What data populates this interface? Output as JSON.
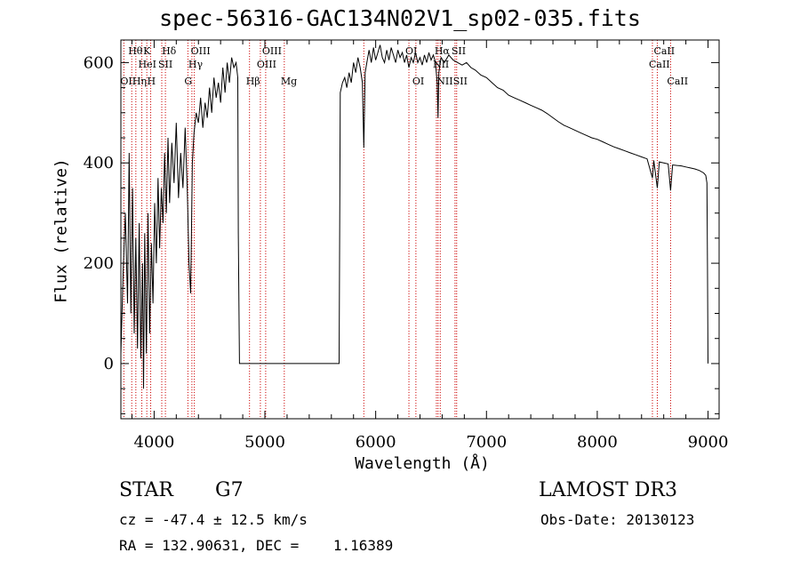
{
  "chart_data": {
    "type": "line",
    "title": "spec-56316-GAC134N02V1_sp02-035.fits",
    "xlabel": "Wavelength (Å)",
    "ylabel": "Flux (relative)",
    "xlim": [
      3700,
      9100
    ],
    "ylim": [
      -110,
      645
    ],
    "xticks": [
      4000,
      5000,
      6000,
      7000,
      8000,
      9000
    ],
    "yticks": [
      0,
      200,
      400,
      600
    ],
    "line_color": "#000000",
    "marker_color": "#cc0000",
    "lines": [
      {
        "name": "O II",
        "label": "OII",
        "wavelength": 3727,
        "row": 3
      },
      {
        "name": "H theta",
        "label": "Hθ",
        "wavelength": 3798,
        "row": 1
      },
      {
        "name": "H eta",
        "label": "Hη",
        "wavelength": 3835,
        "row": 3
      },
      {
        "name": "He I",
        "label": "HeI",
        "wavelength": 3889,
        "row": 2
      },
      {
        "name": "Ca K",
        "label": "K",
        "wavelength": 3934,
        "row": 1
      },
      {
        "name": "Ca H",
        "label": "H",
        "wavelength": 3969,
        "row": 3
      },
      {
        "name": "S II 4069",
        "label": "SII",
        "wavelength": 4069,
        "row": 2
      },
      {
        "name": "H delta",
        "label": "Hδ",
        "wavelength": 4102,
        "row": 1
      },
      {
        "name": "G band",
        "label": "G",
        "wavelength": 4305,
        "row": 3
      },
      {
        "name": "H gamma",
        "label": "Hγ",
        "wavelength": 4341,
        "row": 2
      },
      {
        "name": "O III 4363",
        "label": "OIII",
        "wavelength": 4363,
        "row": 1
      },
      {
        "name": "H beta",
        "label": "Hβ",
        "wavelength": 4861,
        "row": 3
      },
      {
        "name": "O III 4959",
        "label": "OIII",
        "wavelength": 4959,
        "row": 2
      },
      {
        "name": "O III 5007",
        "label": "OIII",
        "wavelength": 5007,
        "row": 1
      },
      {
        "name": "Mg",
        "label": "Mg",
        "wavelength": 5175,
        "row": 3
      },
      {
        "name": "Na",
        "label": "",
        "wavelength": 5893,
        "row": 0
      },
      {
        "name": "O I 6300",
        "label": "OI",
        "wavelength": 6300,
        "row": 1
      },
      {
        "name": "O I 6363",
        "label": "OI",
        "wavelength": 6363,
        "row": 3
      },
      {
        "name": "N II 6548",
        "label": "NII",
        "wavelength": 6548,
        "row": 2
      },
      {
        "name": "H alpha",
        "label": "Hα",
        "wavelength": 6563,
        "row": 1
      },
      {
        "name": "N II 6583",
        "label": "NII",
        "wavelength": 6583,
        "row": 3
      },
      {
        "name": "S II 6716",
        "label": "SII",
        "wavelength": 6716,
        "row": 1
      },
      {
        "name": "S II 6731",
        "label": "SII",
        "wavelength": 6731,
        "row": 3
      },
      {
        "name": "Ca II 8498",
        "label": "CaII",
        "wavelength": 8498,
        "row": 2
      },
      {
        "name": "Ca II 8542",
        "label": "CaII",
        "wavelength": 8542,
        "row": 1
      },
      {
        "name": "Ca II 8662",
        "label": "CaII",
        "wavelength": 8662,
        "row": 3
      }
    ],
    "series": [
      {
        "name": "flux",
        "points": [
          [
            3700,
            20
          ],
          [
            3720,
            180
          ],
          [
            3740,
            300
          ],
          [
            3760,
            120
          ],
          [
            3775,
            420
          ],
          [
            3790,
            100
          ],
          [
            3805,
            350
          ],
          [
            3820,
            60
          ],
          [
            3835,
            250
          ],
          [
            3850,
            30
          ],
          [
            3865,
            280
          ],
          [
            3880,
            10
          ],
          [
            3895,
            200
          ],
          [
            3905,
            -50
          ],
          [
            3915,
            260
          ],
          [
            3930,
            20
          ],
          [
            3945,
            300
          ],
          [
            3960,
            60
          ],
          [
            3975,
            240
          ],
          [
            3990,
            120
          ],
          [
            4005,
            320
          ],
          [
            4020,
            200
          ],
          [
            4035,
            370
          ],
          [
            4050,
            230
          ],
          [
            4065,
            350
          ],
          [
            4080,
            280
          ],
          [
            4095,
            420
          ],
          [
            4110,
            300
          ],
          [
            4125,
            450
          ],
          [
            4140,
            320
          ],
          [
            4160,
            440
          ],
          [
            4180,
            360
          ],
          [
            4200,
            480
          ],
          [
            4220,
            330
          ],
          [
            4240,
            420
          ],
          [
            4260,
            350
          ],
          [
            4280,
            470
          ],
          [
            4300,
            340
          ],
          [
            4315,
            200
          ],
          [
            4330,
            140
          ],
          [
            4345,
            400
          ],
          [
            4360,
            460
          ],
          [
            4380,
            500
          ],
          [
            4400,
            480
          ],
          [
            4420,
            530
          ],
          [
            4440,
            470
          ],
          [
            4460,
            520
          ],
          [
            4480,
            490
          ],
          [
            4500,
            550
          ],
          [
            4520,
            500
          ],
          [
            4540,
            570
          ],
          [
            4560,
            530
          ],
          [
            4580,
            560
          ],
          [
            4600,
            520
          ],
          [
            4620,
            590
          ],
          [
            4640,
            540
          ],
          [
            4660,
            600
          ],
          [
            4680,
            560
          ],
          [
            4700,
            610
          ],
          [
            4720,
            590
          ],
          [
            4740,
            600
          ],
          [
            4755,
            570
          ],
          [
            4760,
            260
          ],
          [
            4770,
            0
          ],
          [
            5670,
            0
          ],
          [
            5680,
            540
          ],
          [
            5700,
            560
          ],
          [
            5720,
            570
          ],
          [
            5740,
            550
          ],
          [
            5760,
            580
          ],
          [
            5780,
            560
          ],
          [
            5800,
            600
          ],
          [
            5820,
            580
          ],
          [
            5840,
            610
          ],
          [
            5860,
            590
          ],
          [
            5880,
            560
          ],
          [
            5893,
            430
          ],
          [
            5905,
            580
          ],
          [
            5920,
            600
          ],
          [
            5940,
            625
          ],
          [
            5960,
            600
          ],
          [
            5980,
            630
          ],
          [
            6000,
            605
          ],
          [
            6020,
            620
          ],
          [
            6040,
            635
          ],
          [
            6060,
            610
          ],
          [
            6080,
            600
          ],
          [
            6100,
            625
          ],
          [
            6120,
            605
          ],
          [
            6140,
            630
          ],
          [
            6160,
            615
          ],
          [
            6180,
            600
          ],
          [
            6200,
            625
          ],
          [
            6220,
            610
          ],
          [
            6240,
            620
          ],
          [
            6260,
            600
          ],
          [
            6280,
            615
          ],
          [
            6300,
            590
          ],
          [
            6320,
            610
          ],
          [
            6340,
            600
          ],
          [
            6360,
            620
          ],
          [
            6380,
            600
          ],
          [
            6400,
            610
          ],
          [
            6420,
            595
          ],
          [
            6440,
            615
          ],
          [
            6460,
            600
          ],
          [
            6480,
            620
          ],
          [
            6500,
            605
          ],
          [
            6520,
            615
          ],
          [
            6540,
            600
          ],
          [
            6555,
            560
          ],
          [
            6563,
            490
          ],
          [
            6570,
            580
          ],
          [
            6590,
            610
          ],
          [
            6620,
            600
          ],
          [
            6660,
            615
          ],
          [
            6700,
            605
          ],
          [
            6740,
            600
          ],
          [
            6780,
            595
          ],
          [
            6820,
            600
          ],
          [
            6860,
            590
          ],
          [
            6900,
            585
          ],
          [
            6950,
            575
          ],
          [
            7000,
            570
          ],
          [
            7050,
            560
          ],
          [
            7100,
            550
          ],
          [
            7150,
            545
          ],
          [
            7200,
            535
          ],
          [
            7250,
            530
          ],
          [
            7300,
            525
          ],
          [
            7350,
            520
          ],
          [
            7400,
            515
          ],
          [
            7450,
            510
          ],
          [
            7500,
            505
          ],
          [
            7550,
            498
          ],
          [
            7600,
            490
          ],
          [
            7650,
            482
          ],
          [
            7700,
            475
          ],
          [
            7750,
            470
          ],
          [
            7800,
            465
          ],
          [
            7850,
            460
          ],
          [
            7900,
            455
          ],
          [
            7950,
            450
          ],
          [
            8000,
            447
          ],
          [
            8050,
            442
          ],
          [
            8100,
            437
          ],
          [
            8150,
            432
          ],
          [
            8200,
            428
          ],
          [
            8250,
            424
          ],
          [
            8300,
            420
          ],
          [
            8350,
            416
          ],
          [
            8400,
            412
          ],
          [
            8450,
            408
          ],
          [
            8498,
            370
          ],
          [
            8510,
            405
          ],
          [
            8542,
            350
          ],
          [
            8560,
            402
          ],
          [
            8600,
            400
          ],
          [
            8640,
            398
          ],
          [
            8662,
            345
          ],
          [
            8680,
            396
          ],
          [
            8720,
            395
          ],
          [
            8760,
            394
          ],
          [
            8800,
            392
          ],
          [
            8840,
            390
          ],
          [
            8880,
            388
          ],
          [
            8920,
            385
          ],
          [
            8960,
            380
          ],
          [
            8980,
            375
          ],
          [
            8990,
            360
          ],
          [
            8995,
            200
          ],
          [
            9000,
            0
          ]
        ]
      }
    ]
  },
  "info": {
    "object_class": "STAR",
    "subclass": "G7",
    "survey": "LAMOST DR3",
    "redshift": "cz = -47.4 ± 12.5 km/s",
    "obs_date": "Obs-Date: 20130123",
    "coords": "RA = 132.90631, DEC =    1.16389"
  }
}
